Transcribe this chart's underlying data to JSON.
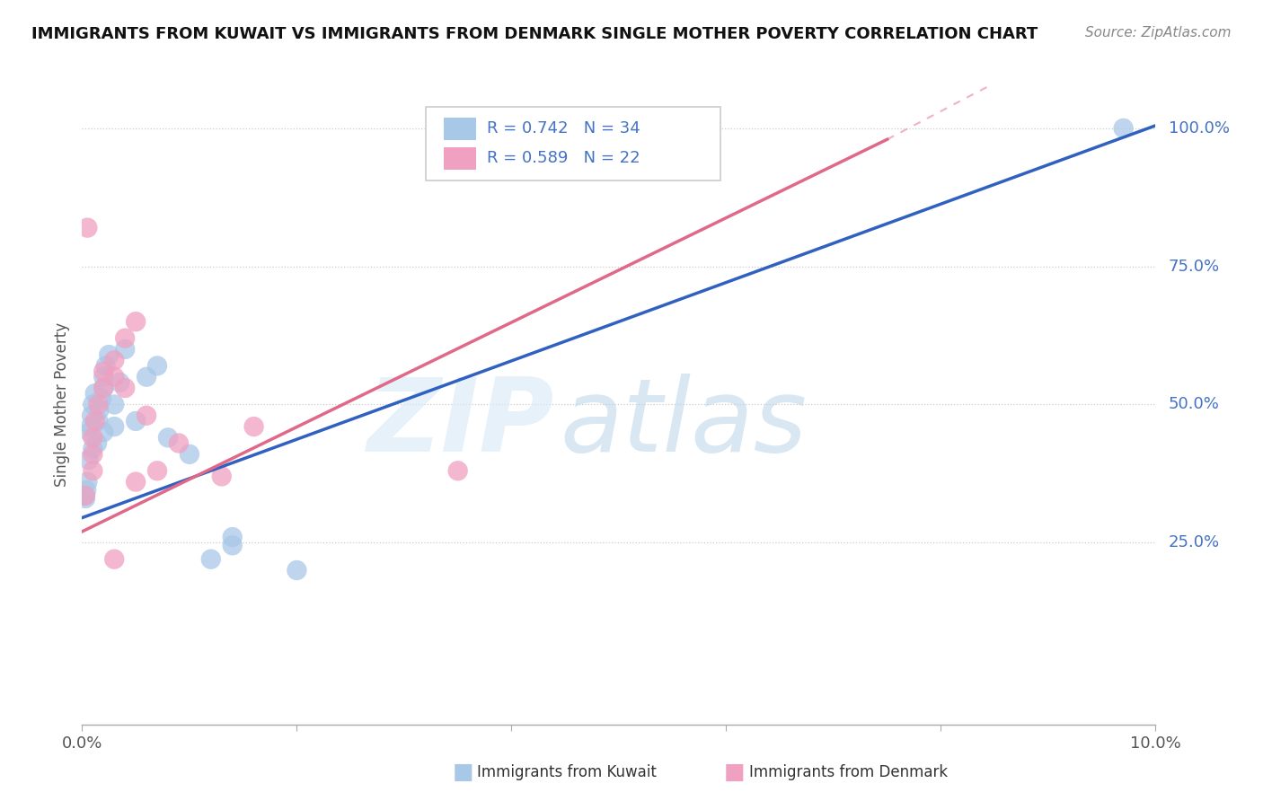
{
  "title": "IMMIGRANTS FROM KUWAIT VS IMMIGRANTS FROM DENMARK SINGLE MOTHER POVERTY CORRELATION CHART",
  "source": "Source: ZipAtlas.com",
  "ylabel": "Single Mother Poverty",
  "ytick_labels": [
    "25.0%",
    "50.0%",
    "75.0%",
    "100.0%"
  ],
  "ytick_values": [
    0.25,
    0.5,
    0.75,
    1.0
  ],
  "xrange": [
    0.0,
    0.1
  ],
  "yrange": [
    -0.08,
    1.08
  ],
  "kuwait_R": "0.742",
  "kuwait_N": "34",
  "denmark_R": "0.589",
  "denmark_N": "22",
  "kuwait_color": "#a8c8e8",
  "denmark_color": "#f0a0c0",
  "kuwait_line_color": "#3060c0",
  "denmark_line_color": "#e06888",
  "legend_label_kuwait": "Immigrants from Kuwait",
  "legend_label_denmark": "Immigrants from Denmark",
  "kuwait_x": [
    0.0002,
    0.0003,
    0.0004,
    0.0005,
    0.0006,
    0.0007,
    0.0008,
    0.0009,
    0.001,
    0.001,
    0.0012,
    0.0014,
    0.0015,
    0.0016,
    0.0018,
    0.002,
    0.002,
    0.002,
    0.0022,
    0.0025,
    0.003,
    0.003,
    0.0035,
    0.004,
    0.005,
    0.006,
    0.007,
    0.008,
    0.01,
    0.012,
    0.014,
    0.014,
    0.02,
    0.097
  ],
  "kuwait_y": [
    0.335,
    0.33,
    0.345,
    0.36,
    0.4,
    0.45,
    0.46,
    0.48,
    0.5,
    0.42,
    0.52,
    0.43,
    0.47,
    0.49,
    0.51,
    0.53,
    0.45,
    0.55,
    0.57,
    0.59,
    0.46,
    0.5,
    0.54,
    0.6,
    0.47,
    0.55,
    0.57,
    0.44,
    0.41,
    0.22,
    0.245,
    0.26,
    0.2,
    1.0
  ],
  "denmark_x": [
    0.0003,
    0.0005,
    0.001,
    0.001,
    0.001,
    0.0012,
    0.0015,
    0.002,
    0.002,
    0.003,
    0.003,
    0.004,
    0.004,
    0.005,
    0.006,
    0.007,
    0.009,
    0.013,
    0.016,
    0.035,
    0.005,
    0.003
  ],
  "denmark_y": [
    0.335,
    0.82,
    0.38,
    0.41,
    0.44,
    0.47,
    0.5,
    0.53,
    0.56,
    0.55,
    0.58,
    0.53,
    0.62,
    0.36,
    0.48,
    0.38,
    0.43,
    0.37,
    0.46,
    0.38,
    0.65,
    0.22
  ],
  "kuwait_line_x": [
    0.0,
    0.1
  ],
  "kuwait_line_y": [
    0.295,
    1.005
  ],
  "denmark_line_x": [
    0.0,
    0.075
  ],
  "denmark_line_y": [
    0.27,
    0.98
  ]
}
